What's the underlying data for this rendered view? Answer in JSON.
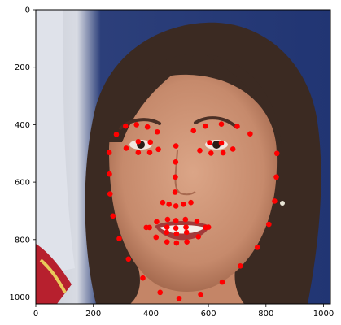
{
  "chart_data": {
    "type": "scatter",
    "title": "",
    "xlabel": "",
    "ylabel": "",
    "xlim": [
      0,
      1024
    ],
    "ylim": [
      1024,
      0
    ],
    "x_ticks": [
      "0",
      "200",
      "400",
      "600",
      "800",
      "1000"
    ],
    "y_ticks": [
      "0",
      "200",
      "400",
      "600",
      "800",
      "1000"
    ],
    "x_tick_values": [
      0,
      200,
      400,
      600,
      800,
      1000
    ],
    "y_tick_values": [
      0,
      200,
      400,
      600,
      800,
      1000
    ],
    "marker_color": "#ff0000",
    "background_description": "photo of smiling woman with dark hair in front of blue backdrop and flag",
    "landmarks": [
      {
        "x": 255,
        "y": 497
      },
      {
        "x": 256,
        "y": 572
      },
      {
        "x": 258,
        "y": 641
      },
      {
        "x": 268,
        "y": 718
      },
      {
        "x": 290,
        "y": 797
      },
      {
        "x": 322,
        "y": 868
      },
      {
        "x": 372,
        "y": 934
      },
      {
        "x": 432,
        "y": 984
      },
      {
        "x": 498,
        "y": 1005
      },
      {
        "x": 573,
        "y": 991
      },
      {
        "x": 648,
        "y": 948
      },
      {
        "x": 711,
        "y": 892
      },
      {
        "x": 770,
        "y": 827
      },
      {
        "x": 810,
        "y": 747
      },
      {
        "x": 830,
        "y": 666
      },
      {
        "x": 836,
        "y": 582
      },
      {
        "x": 838,
        "y": 500
      },
      {
        "x": 280,
        "y": 434
      },
      {
        "x": 312,
        "y": 405
      },
      {
        "x": 350,
        "y": 400
      },
      {
        "x": 388,
        "y": 408
      },
      {
        "x": 422,
        "y": 425
      },
      {
        "x": 548,
        "y": 421
      },
      {
        "x": 589,
        "y": 405
      },
      {
        "x": 645,
        "y": 398
      },
      {
        "x": 700,
        "y": 406
      },
      {
        "x": 745,
        "y": 432
      },
      {
        "x": 487,
        "y": 474
      },
      {
        "x": 486,
        "y": 530
      },
      {
        "x": 485,
        "y": 582
      },
      {
        "x": 484,
        "y": 635
      },
      {
        "x": 441,
        "y": 671
      },
      {
        "x": 463,
        "y": 677
      },
      {
        "x": 487,
        "y": 683
      },
      {
        "x": 513,
        "y": 677
      },
      {
        "x": 539,
        "y": 671
      },
      {
        "x": 314,
        "y": 482
      },
      {
        "x": 356,
        "y": 459
      },
      {
        "x": 398,
        "y": 461
      },
      {
        "x": 426,
        "y": 486
      },
      {
        "x": 396,
        "y": 497
      },
      {
        "x": 356,
        "y": 497
      },
      {
        "x": 570,
        "y": 490
      },
      {
        "x": 604,
        "y": 463
      },
      {
        "x": 645,
        "y": 464
      },
      {
        "x": 685,
        "y": 485
      },
      {
        "x": 651,
        "y": 498
      },
      {
        "x": 609,
        "y": 499
      },
      {
        "x": 384,
        "y": 758
      },
      {
        "x": 420,
        "y": 738
      },
      {
        "x": 458,
        "y": 730
      },
      {
        "x": 487,
        "y": 734
      },
      {
        "x": 520,
        "y": 730
      },
      {
        "x": 560,
        "y": 737
      },
      {
        "x": 600,
        "y": 757
      },
      {
        "x": 565,
        "y": 790
      },
      {
        "x": 525,
        "y": 808
      },
      {
        "x": 489,
        "y": 812
      },
      {
        "x": 456,
        "y": 808
      },
      {
        "x": 418,
        "y": 792
      },
      {
        "x": 395,
        "y": 758
      },
      {
        "x": 456,
        "y": 757
      },
      {
        "x": 487,
        "y": 760
      },
      {
        "x": 522,
        "y": 757
      },
      {
        "x": 590,
        "y": 758
      },
      {
        "x": 524,
        "y": 775
      },
      {
        "x": 489,
        "y": 780
      },
      {
        "x": 455,
        "y": 775
      }
    ]
  }
}
